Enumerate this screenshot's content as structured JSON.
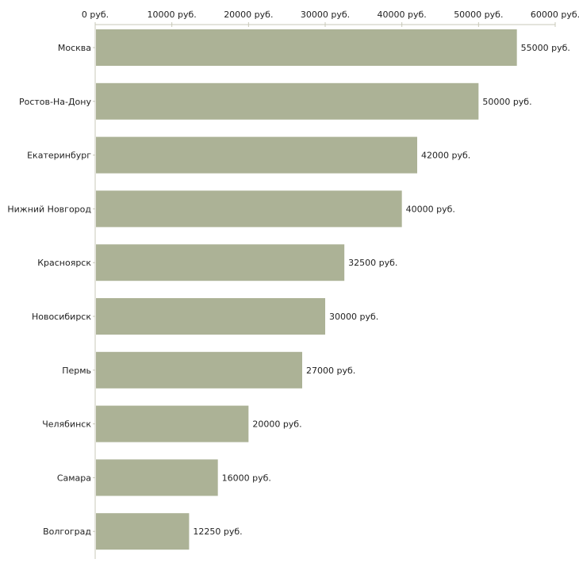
{
  "chart_data": {
    "type": "bar",
    "orientation": "horizontal",
    "title": "",
    "xlabel": "",
    "ylabel": "",
    "unit_suffix": " руб.",
    "xlim": [
      0,
      60000
    ],
    "xticks": [
      0,
      10000,
      20000,
      30000,
      40000,
      50000,
      60000
    ],
    "xtick_labels": [
      "0 руб.",
      "10000 руб.",
      "20000 руб.",
      "30000 руб.",
      "40000 руб.",
      "50000 руб.",
      "60000 руб."
    ],
    "axis_position": "top",
    "grid": false,
    "categories": [
      "Москва",
      "Ростов-На-Дону",
      "Екатеринбург",
      "Нижний Новгород",
      "Красноярск",
      "Новосибирск",
      "Пермь",
      "Челябинск",
      "Самара",
      "Волгоград"
    ],
    "values": [
      55000,
      50000,
      42000,
      40000,
      32500,
      30000,
      27000,
      20000,
      16000,
      12250
    ],
    "value_labels": [
      "55000 руб.",
      "50000 руб.",
      "42000 руб.",
      "40000 руб.",
      "32500 руб.",
      "30000 руб.",
      "27000 руб.",
      "20000 руб.",
      "16000 руб.",
      "12250 руб."
    ],
    "bar_color": "#acb296",
    "axis_color": "#c8c8b8"
  }
}
